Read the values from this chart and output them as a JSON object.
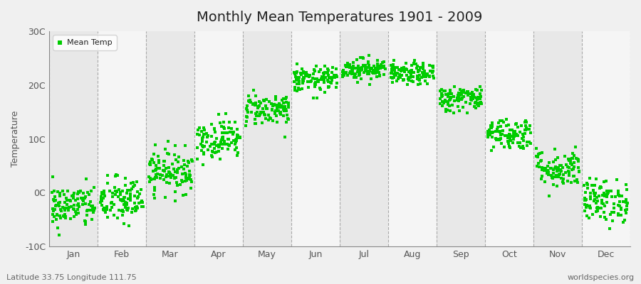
{
  "title": "Monthly Mean Temperatures 1901 - 2009",
  "ylabel": "Temperature",
  "xlabel_labels": [
    "Jan",
    "Feb",
    "Mar",
    "Apr",
    "May",
    "Jun",
    "Jul",
    "Aug",
    "Sep",
    "Oct",
    "Nov",
    "Dec"
  ],
  "ylim": [
    -10,
    30
  ],
  "yticks": [
    -10,
    0,
    10,
    20,
    30
  ],
  "ytick_labels": [
    "-10C",
    "0C",
    "10C",
    "20C",
    "30C"
  ],
  "monthly_means": [
    -2.5,
    -1.5,
    4.0,
    10.0,
    15.5,
    21.0,
    23.0,
    22.0,
    17.5,
    11.0,
    4.5,
    -1.5
  ],
  "monthly_stds": [
    2.0,
    2.2,
    2.0,
    1.8,
    1.5,
    1.2,
    1.0,
    1.0,
    1.2,
    1.5,
    1.8,
    2.0
  ],
  "n_years": 109,
  "marker_color": "#00CC00",
  "marker_size": 3.5,
  "fig_bg_color": "#F0F0F0",
  "plot_bg_color": "#FFFFFF",
  "band_color_light": "#F5F5F5",
  "band_color_dark": "#E8E8E8",
  "subtitle": "Latitude 33.75 Longitude 111.75",
  "watermark": "worldspecies.org",
  "vline_color": "#AAAAAA",
  "axis_color": "#888888",
  "tick_label_color": "#555555",
  "title_fontsize": 14,
  "label_fontsize": 9,
  "ylabel_fontsize": 9
}
